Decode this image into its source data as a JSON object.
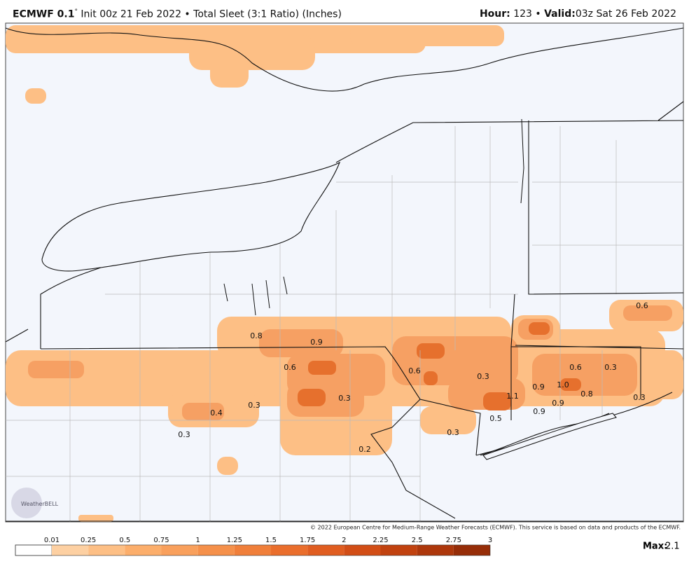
{
  "header": {
    "model": "ECMWF 0.1",
    "degree": "°",
    "description": "Init 00z 21 Feb 2022 • Total Sleet (3:1 Ratio) (Inches)",
    "hour_label": "Hour:",
    "hour": "123",
    "separator": "•",
    "valid_label": "Valid:",
    "valid": "03z Sat 26 Feb 2022"
  },
  "map": {
    "labels": [
      "0.6",
      "0.8",
      "0.9",
      "0.6",
      "0.6",
      "0.3",
      "0.6",
      "0.3",
      "0.9",
      "1.0",
      "1.1",
      "0.8",
      "0.9",
      "0.9",
      "0.3",
      "0.5",
      "0.3",
      "0.3",
      "0.4",
      "0.3",
      "0.3",
      "0.2"
    ],
    "logo": "WeatherBELL"
  },
  "footer": {
    "copyright": "© 2022 European Centre for Medium-Range Weather Forecasts (ECMWF). This service is based on data and products of the ECMWF.",
    "colorbar_ticks": [
      "0.01",
      "0.25",
      "0.5",
      "0.75",
      "1",
      "1.25",
      "1.5",
      "1.75",
      "2",
      "2.25",
      "2.5",
      "2.75",
      "3"
    ],
    "max_label": "Max:",
    "max": "2.1"
  }
}
